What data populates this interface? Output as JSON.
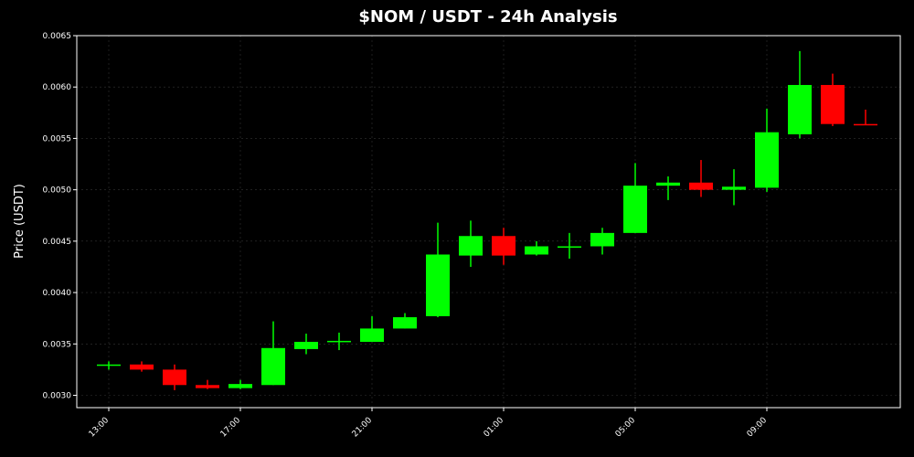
{
  "chart_data": {
    "type": "candlestick",
    "title": "$NOM / USDT - 24h Analysis",
    "y_label": "Price (USDT)",
    "categories": [
      "13:00",
      null,
      null,
      null,
      "17:00",
      null,
      null,
      null,
      "21:00",
      null,
      null,
      null,
      "01:00",
      null,
      null,
      null,
      "05:00",
      null,
      null,
      null,
      "09:00",
      null,
      null,
      null
    ],
    "open": [
      0.00329,
      0.0033,
      0.00325,
      0.0031,
      0.00307,
      0.0031,
      0.00345,
      0.00352,
      0.00352,
      0.00365,
      0.00377,
      0.00436,
      0.00455,
      0.00437,
      0.00444,
      0.00445,
      0.00458,
      0.00504,
      0.00507,
      0.005,
      0.00502,
      0.00554,
      0.00602,
      0.00564
    ],
    "high": [
      0.00333,
      0.00333,
      0.0033,
      0.00315,
      0.00315,
      0.00372,
      0.0036,
      0.00361,
      0.00377,
      0.0038,
      0.00468,
      0.0047,
      0.00463,
      0.0045,
      0.00458,
      0.00463,
      0.00526,
      0.00513,
      0.00529,
      0.0052,
      0.00579,
      0.00635,
      0.00613,
      0.00578
    ],
    "low": [
      0.00325,
      0.00323,
      0.00305,
      0.00306,
      0.00306,
      0.0031,
      0.0034,
      0.00344,
      0.00352,
      0.00365,
      0.00376,
      0.00425,
      0.00427,
      0.00436,
      0.00433,
      0.00437,
      0.00458,
      0.0049,
      0.00493,
      0.00485,
      0.00498,
      0.0055,
      0.00562,
      0.00563
    ],
    "close": [
      0.0033,
      0.00325,
      0.0031,
      0.00307,
      0.00311,
      0.00346,
      0.00352,
      0.00353,
      0.00365,
      0.00376,
      0.00437,
      0.00455,
      0.00436,
      0.00445,
      0.00445,
      0.00458,
      0.00504,
      0.00507,
      0.005,
      0.00503,
      0.00556,
      0.00602,
      0.00564,
      0.00563
    ],
    "up_color": "#00ff00",
    "down_color": "#ff0000",
    "ylim": [
      0.00288,
      0.0065
    ],
    "yticks": [
      {
        "value": 0.003,
        "label": "0.0030"
      },
      {
        "value": 0.0035,
        "label": "0.0035"
      },
      {
        "value": 0.004,
        "label": "0.0040"
      },
      {
        "value": 0.0045,
        "label": "0.0045"
      },
      {
        "value": 0.005,
        "label": "0.0050"
      },
      {
        "value": 0.0055,
        "label": "0.0055"
      },
      {
        "value": 0.006,
        "label": "0.0060"
      },
      {
        "value": 0.0065,
        "label": "0.0065"
      }
    ],
    "grid": true
  }
}
